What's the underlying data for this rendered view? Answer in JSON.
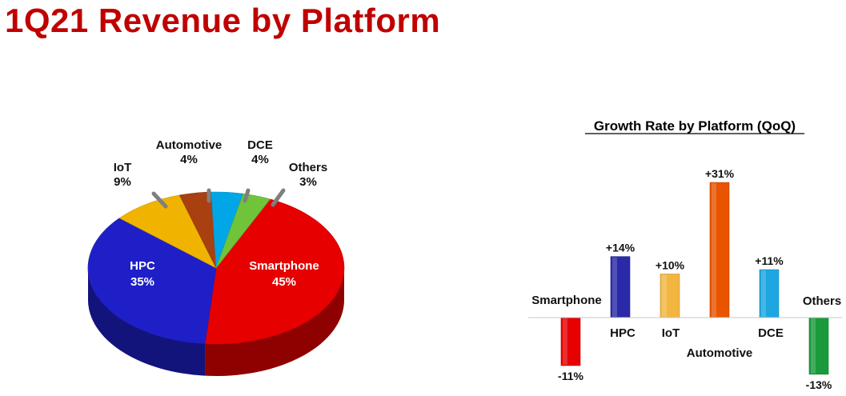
{
  "title": "1Q21 Revenue by Platform",
  "chart_data": [
    {
      "type": "pie",
      "title": "",
      "slices": [
        {
          "label": "Smartphone",
          "value": 45,
          "value_label": "45%",
          "color": "#e60000"
        },
        {
          "label": "HPC",
          "value": 35,
          "value_label": "35%",
          "color": "#1f1fc8"
        },
        {
          "label": "IoT",
          "value": 9,
          "value_label": "9%",
          "color": "#f0b400"
        },
        {
          "label": "Automotive",
          "value": 4,
          "value_label": "4%",
          "color": "#a84010"
        },
        {
          "label": "DCE",
          "value": 4,
          "value_label": "4%",
          "color": "#00a6e6"
        },
        {
          "label": "Others",
          "value": 3,
          "value_label": "3%",
          "color": "#6fc43a"
        }
      ]
    },
    {
      "type": "bar",
      "title": "Growth Rate by Platform (QoQ)",
      "categories": [
        "Smartphone",
        "HPC",
        "IoT",
        "Automotive",
        "DCE",
        "Others"
      ],
      "values": [
        -11,
        14,
        10,
        31,
        11,
        -13
      ],
      "value_labels": [
        "-11%",
        "+14%",
        "+10%",
        "+31%",
        "+11%",
        "-13%"
      ],
      "colors": [
        "#e60000",
        "#2a2aa8",
        "#f2b640",
        "#e85400",
        "#1ea6e0",
        "#1a9a3a"
      ],
      "ylim": [
        -13,
        31
      ],
      "grid": false,
      "legend": "none"
    }
  ]
}
